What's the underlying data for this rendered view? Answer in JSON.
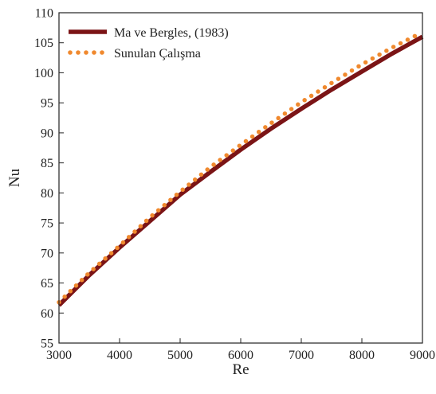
{
  "chart_data": {
    "type": "line",
    "xlabel": "Re",
    "ylabel": "Nu",
    "xlim": [
      3000,
      9000
    ],
    "ylim": [
      55,
      110
    ],
    "xticks": [
      3000,
      4000,
      5000,
      6000,
      7000,
      8000,
      9000
    ],
    "yticks": [
      55,
      60,
      65,
      70,
      75,
      80,
      85,
      90,
      95,
      100,
      105,
      110
    ],
    "grid": false,
    "legend_position": "top-left",
    "series": [
      {
        "name": "Ma ve Bergles, (1983)",
        "style": "solid",
        "color": "#7b1416",
        "x": [
          3000,
          3500,
          4000,
          4500,
          5000,
          5500,
          6000,
          6500,
          7000,
          7500,
          8000,
          8500,
          9000
        ],
        "y": [
          61.3,
          66.3,
          70.9,
          75.3,
          79.7,
          83.5,
          87.2,
          90.7,
          94.0,
          97.2,
          100.2,
          103.2,
          106.0
        ]
      },
      {
        "name": "Sunulan Çalışma",
        "style": "dotted",
        "color": "#f0892e",
        "x": [
          3000,
          3500,
          4000,
          4500,
          5000,
          5500,
          6000,
          6500,
          7000,
          7500,
          8000,
          8500,
          8950
        ],
        "y": [
          61.8,
          66.7,
          71.2,
          75.9,
          80.2,
          84.3,
          88.0,
          91.6,
          95.1,
          98.3,
          101.4,
          104.2,
          106.5
        ]
      }
    ]
  }
}
